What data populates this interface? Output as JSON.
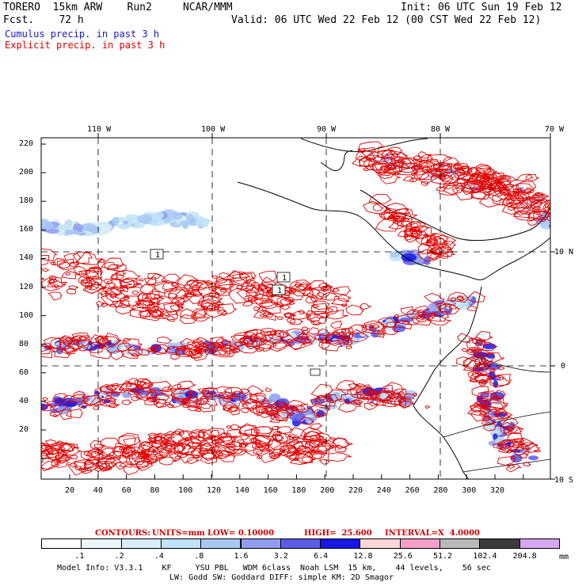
{
  "header": {
    "model_line": "TORERO  15km ARW    Run2     NCAR/MMM",
    "forecast_line": "Fcst.    72 h",
    "init_line": "Init: 06 UTC Sun 19 Feb 12",
    "valid_line": "Valid: 06 UTC Wed 22 Feb 12 (00 CST Wed 22 Feb 12)",
    "cumulus_label": "Cumulus precip. in past 3 h",
    "explicit_label": "Explicit precip. in past 3 h",
    "cumulus_color": "#1a1ac8",
    "explicit_color": "#e00000"
  },
  "map": {
    "top_lon_labels": [
      "110 W",
      "100 W",
      "90 W",
      "80 W",
      "70 W"
    ],
    "right_lat_labels": [
      "10 N",
      "0",
      "10 S"
    ],
    "left_ticks": [
      "220",
      "200",
      "180",
      "160",
      "140",
      "120",
      "100",
      "80",
      "60",
      "40",
      "20"
    ],
    "bottom_ticks": [
      "20",
      "40",
      "60",
      "80",
      "100",
      "120",
      "140",
      "160",
      "180",
      "200",
      "220",
      "240",
      "260",
      "280",
      "300",
      "320"
    ],
    "box_labels": [
      "1",
      "1",
      "1"
    ]
  },
  "contour_info": {
    "contours": "CONTOURS:",
    "units": "UNITS=mm",
    "low": "LOW= 0.10000",
    "high": "HIGH=  25.600",
    "interval": "INTERVAL=X  4.0000"
  },
  "colorbar": {
    "labels": [
      ".1",
      ".2",
      ".4",
      ".8",
      "1.6",
      "3.2",
      "6.4",
      "12.8",
      "25.6",
      "51.2",
      "102.4",
      "204.8"
    ],
    "colors": [
      "#ffffff",
      "#ecf6fb",
      "#d9eef9",
      "#bfe3f8",
      "#a8c8f4",
      "#8f9cf0",
      "#5a5be8",
      "#1717e6",
      "#fcd7d7",
      "#f59ec6",
      "#b9b9b9",
      "#3c3c3c",
      "#d8a6f0"
    ],
    "unit": "mm"
  },
  "footer": {
    "line1": "Model Info: V3.3.1    KF     YSU PBL   WDM 6class  Noah LSM  15 km,    44 levels,    56 sec",
    "line2": "LW: Godd SW: Goddard DIFF: simple KM: 2D Smagor"
  }
}
